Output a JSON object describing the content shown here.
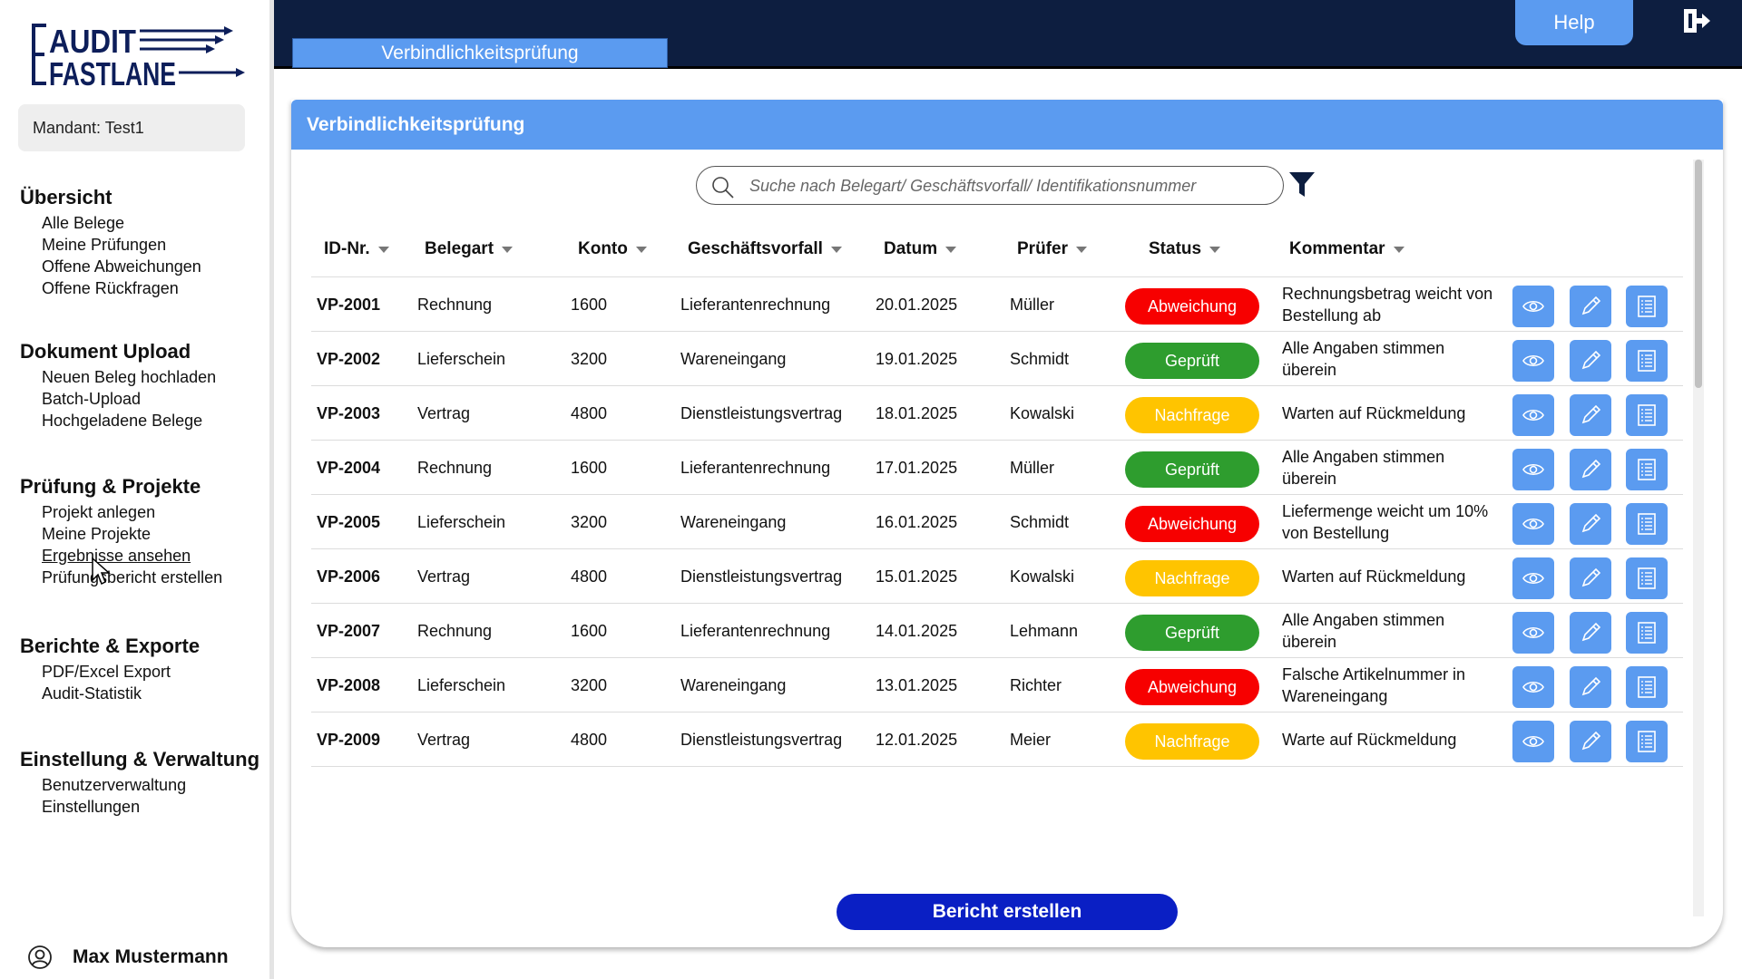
{
  "app": {
    "logo_line1": "AUDIT",
    "logo_line2": "FASTLANE"
  },
  "sidebar": {
    "mandant": "Mandant: Test1",
    "sections": [
      {
        "heading": "Übersicht",
        "items": [
          "Alle Belege",
          "Meine Prüfungen",
          "Offene Abweichungen",
          "Offene Rückfragen"
        ]
      },
      {
        "heading": "Dokument Upload",
        "items": [
          "Neuen Beleg hochladen",
          "Batch-Upload",
          "Hochgeladene Belege"
        ]
      },
      {
        "heading": "Prüfung & Projekte",
        "items": [
          "Projekt anlegen",
          "Meine Projekte",
          "Ergebnisse ansehen",
          "Prüfungsbericht erstellen"
        ]
      },
      {
        "heading": "Berichte & Exporte",
        "items": [
          "PDF/Excel Export",
          "Audit-Statistik"
        ]
      },
      {
        "heading": "Einstellung & Verwaltung",
        "items": [
          "Benutzerverwaltung",
          "Einstellungen"
        ]
      }
    ],
    "user_name": "Max Mustermann"
  },
  "topbar": {
    "tab_label": "Verbindlichkeitsprüfung",
    "help_label": "Help"
  },
  "main": {
    "title": "Verbindlichkeitsprüfung",
    "search_placeholder": "Suche nach Belegart/ Geschäftsvorfall/ Identifikationsnummer",
    "report_button": "Bericht erstellen"
  },
  "table": {
    "columns": [
      "ID-Nr.",
      "Belegart",
      "Konto",
      "Geschäftsvorfall",
      "Datum",
      "Prüfer",
      "Status",
      "Kommentar"
    ],
    "rows": [
      {
        "id": "VP-2001",
        "belegart": "Rechnung",
        "konto": "1600",
        "vorfall": "Lieferantenrechnung",
        "datum": "20.01.2025",
        "pruefer": "Müller",
        "status": "Abweichung",
        "kommentar": "Rechnungsbetrag weicht von Bestellung ab"
      },
      {
        "id": "VP-2002",
        "belegart": "Lieferschein",
        "konto": "3200",
        "vorfall": "Wareneingang",
        "datum": "19.01.2025",
        "pruefer": "Schmidt",
        "status": "Geprüft",
        "kommentar": "Alle Angaben stimmen überein"
      },
      {
        "id": "VP-2003",
        "belegart": "Vertrag",
        "konto": "4800",
        "vorfall": "Dienstleistungsvertrag",
        "datum": "18.01.2025",
        "pruefer": "Kowalski",
        "status": "Nachfrage",
        "kommentar": "Warten auf Rückmeldung"
      },
      {
        "id": "VP-2004",
        "belegart": "Rechnung",
        "konto": "1600",
        "vorfall": "Lieferantenrechnung",
        "datum": "17.01.2025",
        "pruefer": "Müller",
        "status": "Geprüft",
        "kommentar": "Alle Angaben stimmen überein"
      },
      {
        "id": "VP-2005",
        "belegart": "Lieferschein",
        "konto": "3200",
        "vorfall": "Wareneingang",
        "datum": "16.01.2025",
        "pruefer": "Schmidt",
        "status": "Abweichung",
        "kommentar": "Liefermenge weicht um 10% von Bestellung"
      },
      {
        "id": "VP-2006",
        "belegart": "Vertrag",
        "konto": "4800",
        "vorfall": "Dienstleistungsvertrag",
        "datum": "15.01.2025",
        "pruefer": "Kowalski",
        "status": "Nachfrage",
        "kommentar": "Warten auf Rückmeldung"
      },
      {
        "id": "VP-2007",
        "belegart": "Rechnung",
        "konto": "1600",
        "vorfall": "Lieferantenrechnung",
        "datum": "14.01.2025",
        "pruefer": "Lehmann",
        "status": "Geprüft",
        "kommentar": "Alle Angaben stimmen überein"
      },
      {
        "id": "VP-2008",
        "belegart": "Lieferschein",
        "konto": "3200",
        "vorfall": "Wareneingang",
        "datum": "13.01.2025",
        "pruefer": "Richter",
        "status": "Abweichung",
        "kommentar": "Falsche Artikelnummer in Wareneingang"
      },
      {
        "id": "VP-2009",
        "belegart": "Vertrag",
        "konto": "4800",
        "vorfall": "Dienstleistungsvertrag",
        "datum": "12.01.2025",
        "pruefer": "Meier",
        "status": "Nachfrage",
        "kommentar": "Warte auf Rückmeldung"
      }
    ],
    "status_colors": {
      "Abweichung": "#f70000",
      "Geprüft": "#2e9d2e",
      "Nachfrage": "#ffc400"
    }
  },
  "colors": {
    "accent": "#5b9bf0",
    "topbar": "#0d1e40",
    "primary_button": "#0a1fc4",
    "logo": "#0d1e5a"
  },
  "icons": {
    "row_actions": [
      "eye-icon",
      "pencil-icon",
      "list-icon"
    ],
    "search": "search-icon",
    "filter": "filter-icon",
    "logout": "logout-icon",
    "user": "user-icon"
  }
}
